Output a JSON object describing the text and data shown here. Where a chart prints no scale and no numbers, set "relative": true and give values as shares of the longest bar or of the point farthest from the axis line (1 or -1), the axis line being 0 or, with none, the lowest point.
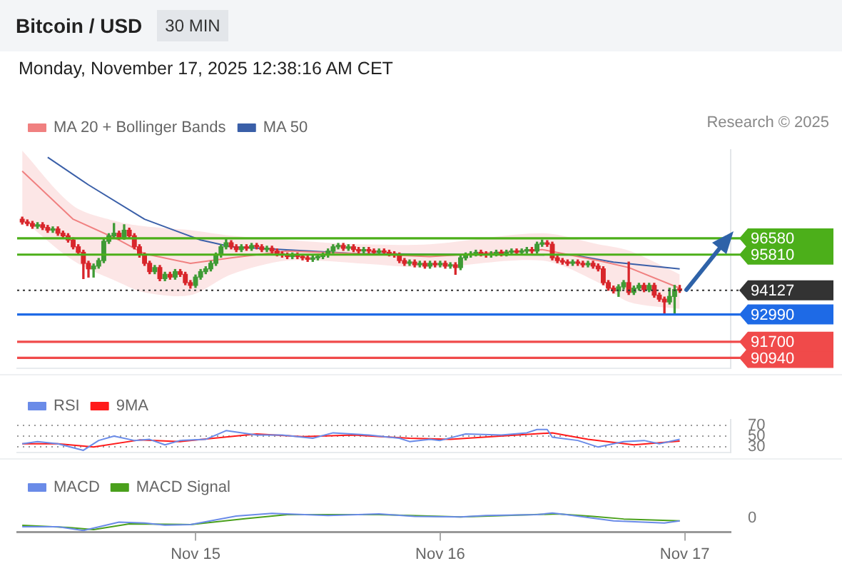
{
  "chart_data": [
    {
      "type": "candlestick",
      "title": "Bitcoin / USD",
      "subtitle": "Monday, November 17, 2025 12:38:16 AM CET",
      "annotations": [
        "30 MIN",
        "Research © 2025"
      ],
      "x": [
        "2025-11-14T07:00",
        "2025-11-14T07:30",
        "2025-11-14T08:00",
        "2025-11-14T08:30",
        "2025-11-14T09:00",
        "2025-11-14T09:30",
        "2025-11-14T10:00",
        "2025-11-14T10:30",
        "2025-11-14T11:00",
        "2025-11-14T11:30",
        "2025-11-14T12:00",
        "2025-11-14T12:30",
        "2025-11-14T13:00",
        "2025-11-14T13:30",
        "2025-11-14T14:00",
        "2025-11-14T14:30",
        "2025-11-14T15:00",
        "2025-11-14T15:30",
        "2025-11-14T16:00",
        "2025-11-14T16:30",
        "2025-11-14T17:00",
        "2025-11-14T17:30",
        "2025-11-14T18:00",
        "2025-11-14T18:30",
        "2025-11-14T19:00",
        "2025-11-14T19:30",
        "2025-11-14T20:00",
        "2025-11-14T20:30",
        "2025-11-14T21:00",
        "2025-11-14T21:30",
        "2025-11-14T22:00",
        "2025-11-14T22:30",
        "2025-11-14T23:00",
        "2025-11-14T23:30",
        "2025-11-15T00:00",
        "2025-11-15T00:30",
        "2025-11-15T01:00",
        "2025-11-15T01:30",
        "2025-11-15T02:00",
        "2025-11-15T02:30",
        "2025-11-15T03:00",
        "2025-11-15T03:30",
        "2025-11-15T04:00",
        "2025-11-15T04:30",
        "2025-11-15T05:00",
        "2025-11-15T05:30",
        "2025-11-15T06:00",
        "2025-11-15T06:30",
        "2025-11-15T07:00",
        "2025-11-15T07:30",
        "2025-11-15T08:00",
        "2025-11-15T08:30",
        "2025-11-15T09:00",
        "2025-11-15T09:30",
        "2025-11-15T10:00",
        "2025-11-15T10:30",
        "2025-11-15T11:00",
        "2025-11-15T11:30",
        "2025-11-15T12:00",
        "2025-11-15T12:30",
        "2025-11-15T13:00",
        "2025-11-15T13:30",
        "2025-11-15T14:00",
        "2025-11-15T14:30",
        "2025-11-15T15:00",
        "2025-11-15T15:30",
        "2025-11-15T16:00",
        "2025-11-15T16:30",
        "2025-11-15T17:00",
        "2025-11-15T17:30",
        "2025-11-15T18:00",
        "2025-11-15T18:30",
        "2025-11-15T19:00",
        "2025-11-15T19:30",
        "2025-11-15T20:00",
        "2025-11-15T20:30",
        "2025-11-15T21:00",
        "2025-11-15T21:30",
        "2025-11-15T22:00",
        "2025-11-15T22:30",
        "2025-11-15T23:00",
        "2025-11-15T23:30",
        "2025-11-16T00:00",
        "2025-11-16T00:30",
        "2025-11-16T01:00",
        "2025-11-16T01:30",
        "2025-11-16T02:00",
        "2025-11-16T02:30",
        "2025-11-16T03:00",
        "2025-11-16T03:30",
        "2025-11-16T04:00",
        "2025-11-16T04:30",
        "2025-11-16T05:00",
        "2025-11-16T05:30",
        "2025-11-16T06:00",
        "2025-11-16T06:30",
        "2025-11-16T07:00",
        "2025-11-16T07:30",
        "2025-11-16T08:00",
        "2025-11-16T08:30",
        "2025-11-16T09:00",
        "2025-11-16T09:30",
        "2025-11-16T10:00",
        "2025-11-16T10:30",
        "2025-11-16T11:00",
        "2025-11-16T11:30",
        "2025-11-16T12:00",
        "2025-11-16T12:30",
        "2025-11-16T13:00",
        "2025-11-16T13:30",
        "2025-11-16T14:00",
        "2025-11-16T14:30",
        "2025-11-16T15:00",
        "2025-11-16T15:30",
        "2025-11-16T16:00",
        "2025-11-16T16:30",
        "2025-11-16T17:00",
        "2025-11-16T17:30",
        "2025-11-16T18:00",
        "2025-11-16T18:30",
        "2025-11-16T19:00",
        "2025-11-16T19:30",
        "2025-11-16T20:00",
        "2025-11-16T20:30",
        "2025-11-16T21:00",
        "2025-11-16T21:30",
        "2025-11-16T22:00",
        "2025-11-16T22:30",
        "2025-11-16T23:00",
        "2025-11-16T23:30"
      ],
      "ohlc": [
        [
          97480,
          97580,
          97250,
          97350
        ],
        [
          97350,
          97450,
          97180,
          97280
        ],
        [
          97280,
          97380,
          97050,
          97150
        ],
        [
          97150,
          97320,
          97050,
          97220
        ],
        [
          97220,
          97320,
          96990,
          97090
        ],
        [
          97090,
          97190,
          96860,
          96960
        ],
        [
          96960,
          97120,
          96860,
          97020
        ],
        [
          97020,
          97120,
          96720,
          96820
        ],
        [
          96820,
          96920,
          96600,
          96700
        ],
        [
          96700,
          96800,
          96400,
          96500
        ],
        [
          96500,
          96600,
          96080,
          96180
        ],
        [
          96180,
          96280,
          95820,
          95920
        ],
        [
          95920,
          96020,
          94680,
          95400
        ],
        [
          95400,
          95500,
          94750,
          95140
        ],
        [
          95140,
          95370,
          94750,
          95270
        ],
        [
          95270,
          95630,
          95170,
          95530
        ],
        [
          95530,
          96540,
          95430,
          96440
        ],
        [
          96440,
          96800,
          96340,
          96700
        ],
        [
          96700,
          97280,
          96600,
          96820
        ],
        [
          96820,
          96920,
          96530,
          96630
        ],
        [
          96630,
          97220,
          96530,
          96960
        ],
        [
          96960,
          97060,
          96600,
          96700
        ],
        [
          96700,
          96800,
          96080,
          96180
        ],
        [
          96180,
          96280,
          95690,
          95790
        ],
        [
          95790,
          95890,
          95300,
          95400
        ],
        [
          95400,
          95500,
          94910,
          95010
        ],
        [
          95010,
          95300,
          94910,
          95200
        ],
        [
          95200,
          95300,
          94580,
          94680
        ],
        [
          94680,
          94980,
          94580,
          94880
        ],
        [
          94880,
          94980,
          94650,
          94750
        ],
        [
          94750,
          95110,
          94650,
          95010
        ],
        [
          95010,
          95110,
          94780,
          94880
        ],
        [
          94880,
          94980,
          94390,
          94490
        ],
        [
          94490,
          94590,
          94230,
          94360
        ],
        [
          94360,
          94850,
          94260,
          94750
        ],
        [
          94750,
          95110,
          94650,
          95010
        ],
        [
          95010,
          95240,
          94910,
          95140
        ],
        [
          95140,
          95500,
          95040,
          95400
        ],
        [
          95400,
          95890,
          95300,
          95790
        ],
        [
          95790,
          96280,
          95690,
          96180
        ],
        [
          96180,
          96570,
          96080,
          96370
        ],
        [
          96370,
          96470,
          96080,
          96180
        ],
        [
          96180,
          96280,
          95950,
          96050
        ],
        [
          96050,
          96280,
          95950,
          96180
        ],
        [
          96180,
          96280,
          96010,
          96110
        ],
        [
          96110,
          96340,
          96010,
          96240
        ],
        [
          96240,
          96340,
          96080,
          96180
        ],
        [
          96180,
          96280,
          95950,
          96050
        ],
        [
          96050,
          96210,
          95950,
          96110
        ],
        [
          96110,
          96210,
          95880,
          95980
        ],
        [
          95980,
          96080,
          95750,
          95850
        ],
        [
          95850,
          95950,
          95690,
          95790
        ],
        [
          95790,
          95890,
          95620,
          95720
        ],
        [
          95720,
          95890,
          95620,
          95790
        ],
        [
          95790,
          95890,
          95620,
          95720
        ],
        [
          95720,
          95820,
          95560,
          95660
        ],
        [
          95660,
          95760,
          95490,
          95590
        ],
        [
          95590,
          95760,
          95490,
          95660
        ],
        [
          95660,
          95820,
          95560,
          95720
        ],
        [
          95720,
          95890,
          95620,
          95790
        ],
        [
          95790,
          96080,
          95690,
          95980
        ],
        [
          95980,
          96280,
          95880,
          96180
        ],
        [
          96180,
          96340,
          96080,
          96240
        ],
        [
          96240,
          96340,
          96010,
          96110
        ],
        [
          96110,
          96280,
          96010,
          96180
        ],
        [
          96180,
          96280,
          95950,
          96050
        ],
        [
          96050,
          96150,
          95880,
          95980
        ],
        [
          95980,
          96150,
          95880,
          96050
        ],
        [
          96050,
          96150,
          95880,
          95980
        ],
        [
          95980,
          96080,
          95820,
          95920
        ],
        [
          95920,
          96080,
          95820,
          95980
        ],
        [
          95980,
          96080,
          95820,
          95920
        ],
        [
          95920,
          96020,
          95750,
          95850
        ],
        [
          95850,
          95950,
          95690,
          95790
        ],
        [
          95790,
          95890,
          95430,
          95530
        ],
        [
          95530,
          95630,
          95300,
          95400
        ],
        [
          95400,
          95560,
          95300,
          95460
        ],
        [
          95460,
          95560,
          95230,
          95330
        ],
        [
          95330,
          95500,
          95230,
          95400
        ],
        [
          95400,
          95500,
          95170,
          95270
        ],
        [
          95270,
          95500,
          95170,
          95400
        ],
        [
          95400,
          95500,
          95230,
          95330
        ],
        [
          95330,
          95500,
          95230,
          95400
        ],
        [
          95400,
          95500,
          95170,
          95270
        ],
        [
          95270,
          95430,
          95170,
          95330
        ],
        [
          95330,
          95430,
          94880,
          95200
        ],
        [
          95200,
          95760,
          95100,
          95660
        ],
        [
          95660,
          95890,
          95560,
          95790
        ],
        [
          95790,
          95950,
          95690,
          95850
        ],
        [
          95850,
          96020,
          95750,
          95920
        ],
        [
          95920,
          96020,
          95750,
          95850
        ],
        [
          95850,
          95950,
          95690,
          95790
        ],
        [
          95790,
          95950,
          95690,
          95850
        ],
        [
          95850,
          96020,
          95750,
          95920
        ],
        [
          95920,
          96020,
          95750,
          95850
        ],
        [
          95850,
          96020,
          95750,
          95920
        ],
        [
          95920,
          96080,
          95820,
          95980
        ],
        [
          95980,
          96080,
          95820,
          95920
        ],
        [
          95920,
          96080,
          95820,
          95980
        ],
        [
          95980,
          96150,
          95880,
          96050
        ],
        [
          96050,
          96150,
          95880,
          95980
        ],
        [
          95980,
          96400,
          95880,
          96300
        ],
        [
          96300,
          96500,
          96200,
          96370
        ],
        [
          96370,
          96470,
          96200,
          96300
        ],
        [
          96300,
          96400,
          95560,
          95660
        ],
        [
          95660,
          95760,
          95430,
          95530
        ],
        [
          95530,
          95630,
          95360,
          95460
        ],
        [
          95460,
          95560,
          95300,
          95400
        ],
        [
          95400,
          95560,
          95300,
          95460
        ],
        [
          95460,
          95560,
          95300,
          95400
        ],
        [
          95400,
          95500,
          95230,
          95330
        ],
        [
          95330,
          95500,
          95230,
          95400
        ],
        [
          95400,
          95500,
          95170,
          95270
        ],
        [
          95270,
          95370,
          95040,
          95140
        ],
        [
          95140,
          95240,
          94390,
          94490
        ],
        [
          94490,
          94590,
          94130,
          94230
        ],
        [
          94230,
          94330,
          94000,
          94100
        ],
        [
          94100,
          94390,
          93840,
          94290
        ],
        [
          94290,
          94590,
          94190,
          94490
        ],
        [
          94490,
          95460,
          93930,
          94030
        ],
        [
          94030,
          94330,
          93930,
          94230
        ],
        [
          94230,
          94460,
          94130,
          94360
        ],
        [
          94360,
          94460,
          94060,
          94160
        ],
        [
          94160,
          94460,
          94060,
          94360
        ],
        [
          94360,
          94460,
          93800,
          93900
        ],
        [
          93900,
          94000,
          93610,
          93710
        ],
        [
          93710,
          93810,
          92990,
          93580
        ],
        [
          93580,
          94230,
          93480,
          93840
        ],
        [
          93840,
          94360,
          92990,
          94160
        ],
        [
          94160,
          94360,
          94030,
          94127
        ]
      ],
      "series": [
        {
          "name": "MA 20 + Bollinger Bands",
          "type": "line",
          "color": "#f08080",
          "x": [
            "2025-11-14T07:00",
            "2025-11-14T12:00",
            "2025-11-14T16:30",
            "2025-11-14T19:00",
            "2025-11-14T23:30",
            "2025-11-15T03:30",
            "2025-11-15T09:00",
            "2025-11-15T16:00",
            "2025-11-15T23:00",
            "2025-11-16T10:00",
            "2025-11-16T15:30",
            "2025-11-16T18:30",
            "2025-11-16T23:30"
          ],
          "values": [
            99750,
            97480,
            96500,
            95850,
            95400,
            95660,
            95980,
            95850,
            95720,
            96050,
            95530,
            95200,
            94230
          ],
          "lower": [
            97480,
            95530,
            94500,
            94030,
            93900,
            94880,
            95530,
            95400,
            95200,
            95530,
            94500,
            93580,
            93250
          ],
          "upper": [
            100720,
            98120,
            97350,
            97150,
            96960,
            96700,
            96500,
            96300,
            96300,
            96820,
            96300,
            96000,
            94880
          ]
        },
        {
          "name": "MA 50",
          "type": "line",
          "color": "#3a5fa8",
          "x": [
            "2025-11-14T09:30",
            "2025-11-14T13:30",
            "2025-11-14T19:00",
            "2025-11-15T00:30",
            "2025-11-15T03:30",
            "2025-11-15T16:00",
            "2025-11-16T13:00",
            "2025-11-16T17:00",
            "2025-11-16T23:30"
          ],
          "values": [
            100400,
            99100,
            97480,
            96500,
            96180,
            95850,
            95790,
            95460,
            95140
          ]
        }
      ],
      "xlim": [
        "2025-11-14T06:30",
        "2025-11-17T04:30"
      ],
      "ylim": [
        90450,
        100750
      ],
      "yticks": [
        90940,
        91700,
        92990,
        94127,
        95810,
        96580
      ],
      "ref_lines": [
        {
          "axis": "y",
          "value": 96580,
          "color": "#4caf1a"
        },
        {
          "axis": "y",
          "value": 95810,
          "color": "#4caf1a"
        },
        {
          "axis": "y",
          "value": 94127,
          "color": "#333333",
          "line_style": "dotted"
        },
        {
          "axis": "y",
          "value": 92990,
          "color": "#1e6ae6"
        },
        {
          "axis": "y",
          "value": 91700,
          "color": "#f04a4a"
        },
        {
          "axis": "y",
          "value": 90940,
          "color": "#f04a4a"
        }
      ],
      "legend": "top left",
      "marker": "none",
      "tick_labels": "y"
    },
    {
      "type": "line",
      "series": [
        {
          "name": "RSI",
          "color": "#6a8be8",
          "x": [
            "2025-11-14T07:00",
            "2025-11-14T08:30",
            "2025-11-14T10:30",
            "2025-11-14T13:00",
            "2025-11-14T14:30",
            "2025-11-14T16:00",
            "2025-11-14T18:00",
            "2025-11-14T19:30",
            "2025-11-14T21:00",
            "2025-11-14T22:30",
            "2025-11-15T01:00",
            "2025-11-15T03:00",
            "2025-11-15T06:00",
            "2025-11-15T08:30",
            "2025-11-15T11:30",
            "2025-11-15T13:30",
            "2025-11-15T17:00",
            "2025-11-15T20:00",
            "2025-11-15T21:00",
            "2025-11-15T23:00",
            "2025-11-16T00:00",
            "2025-11-16T02:30",
            "2025-11-16T06:00",
            "2025-11-16T08:30",
            "2025-11-16T09:30",
            "2025-11-16T10:30",
            "2025-11-16T11:00",
            "2025-11-16T13:30",
            "2025-11-16T15:30",
            "2025-11-16T18:00",
            "2025-11-16T20:00",
            "2025-11-16T21:30",
            "2025-11-16T23:30"
          ],
          "values": [
            36,
            40,
            36,
            24,
            42,
            50,
            42,
            44,
            34,
            42,
            44,
            60,
            52,
            52,
            46,
            56,
            52,
            46,
            40,
            44,
            42,
            54,
            52,
            56,
            62,
            62,
            48,
            42,
            30,
            40,
            42,
            36,
            44
          ]
        },
        {
          "name": "9MA",
          "color": "#ff1a1a",
          "x": [
            "2025-11-14T07:00",
            "2025-11-14T10:30",
            "2025-11-14T14:00",
            "2025-11-14T18:30",
            "2025-11-14T22:30",
            "2025-11-15T06:00",
            "2025-11-15T10:30",
            "2025-11-15T15:30",
            "2025-11-15T21:00",
            "2025-11-16T01:00",
            "2025-11-16T07:30",
            "2025-11-16T11:00",
            "2025-11-16T14:30",
            "2025-11-16T19:00",
            "2025-11-16T23:30"
          ],
          "values": [
            36,
            36,
            30,
            43,
            40,
            54,
            49,
            52,
            46,
            44,
            52,
            56,
            44,
            34,
            41
          ]
        }
      ],
      "xlim": [
        "2025-11-14T06:30",
        "2025-11-17T04:30"
      ],
      "ylim": [
        20,
        80
      ],
      "yticks": [
        30,
        50,
        70
      ],
      "grid": "y",
      "legend": "top left",
      "marker": "none",
      "tick_labels": "y"
    },
    {
      "type": "line",
      "relative": true,
      "series": [
        {
          "name": "MACD",
          "color": "#6a8be8",
          "x": [
            "2025-11-14T07:00",
            "2025-11-14T10:30",
            "2025-11-14T13:00",
            "2025-11-14T16:30",
            "2025-11-14T19:00",
            "2025-11-14T21:00",
            "2025-11-14T23:30",
            "2025-11-15T04:00",
            "2025-11-15T07:30",
            "2025-11-15T13:00",
            "2025-11-15T18:00",
            "2025-11-15T21:30",
            "2025-11-16T02:00",
            "2025-11-16T04:30",
            "2025-11-16T09:30",
            "2025-11-16T11:00",
            "2025-11-16T12:30",
            "2025-11-16T17:00",
            "2025-11-16T22:00",
            "2025-11-16T23:30"
          ],
          "values": [
            0.21,
            0.21,
            0,
            0.48,
            0.43,
            0.31,
            0.34,
            0.83,
            0.98,
            0.86,
            0.95,
            0.81,
            0.78,
            0.86,
            0.91,
            1,
            0.9,
            0.55,
            0.43,
            0.55
          ]
        },
        {
          "name": "MACD Signal",
          "color": "#4aa01c",
          "x": [
            "2025-11-14T07:00",
            "2025-11-14T11:30",
            "2025-11-14T14:00",
            "2025-11-14T17:30",
            "2025-11-14T23:30",
            "2025-11-15T05:00",
            "2025-11-15T09:00",
            "2025-11-15T18:00",
            "2025-11-16T02:00",
            "2025-11-16T11:30",
            "2025-11-16T15:00",
            "2025-11-16T18:00",
            "2025-11-16T23:30"
          ],
          "values": [
            0.29,
            0.17,
            0.05,
            0.38,
            0.34,
            0.69,
            0.91,
            0.91,
            0.78,
            0.95,
            0.81,
            0.66,
            0.55
          ]
        }
      ],
      "xlim": [
        "2025-11-14T06:30",
        "2025-11-17T04:30"
      ],
      "xticks": [
        {
          "value": "2025-11-15",
          "label": "Nov 15"
        },
        {
          "value": "2025-11-16",
          "label": "Nov 16"
        },
        {
          "value": "2025-11-17",
          "label": "Nov 17"
        }
      ],
      "annotations": [
        "0"
      ],
      "legend": "top left",
      "marker": "none",
      "tick_labels": "x"
    }
  ]
}
